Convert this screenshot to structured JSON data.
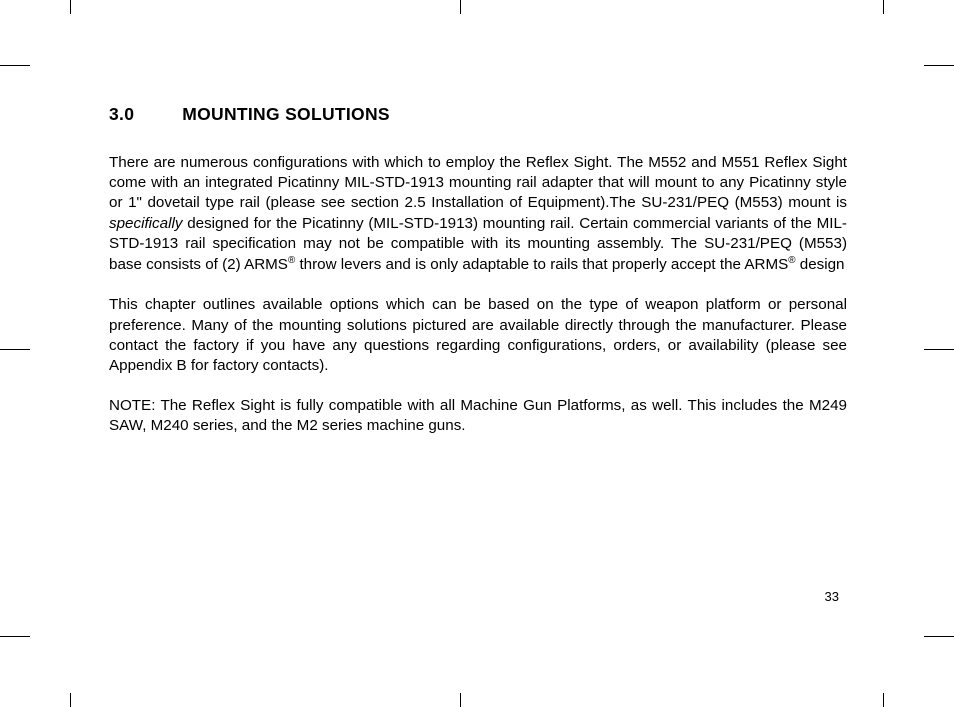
{
  "section": {
    "number": "3.0",
    "title": "MOUNTING SOLUTIONS"
  },
  "paragraphs": {
    "p1_part1": "There are numerous configurations with which to employ the Reflex Sight. The M552 and M551 Reflex Sight come with an integrated Picatinny MIL-STD-1913 mounting rail adapter that will mount to any Picatinny style or 1\" dovetail type rail (please see section 2.5 Installation of Equipment).The SU-231/PEQ (M553) mount is ",
    "p1_italic": "specifically",
    "p1_part2": " designed for the Picatinny (MIL-STD-1913) mounting rail. Certain commercial variants of the MIL-STD-1913 rail specification may not be compatible with its mounting assembly. The SU-231/PEQ (M553) base consists of (2) ARMS",
    "p1_reg1": "®",
    "p1_part3": " throw levers and is only adaptable to rails that properly accept the ARMS",
    "p1_reg2": "®",
    "p1_part4": " design",
    "p2": "This chapter outlines available options which can be based on the type of weapon platform or personal preference. Many of the mounting solutions pictured are available directly through the manufacturer. Please contact the factory if you have any questions regarding configurations, orders, or availability (please see Appendix B for factory contacts).",
    "p3": "NOTE: The Reflex Sight is fully compatible with all Machine Gun Platforms, as well. This includes the M249 SAW, M240 series, and the M2 series machine guns."
  },
  "pageNumber": "33"
}
